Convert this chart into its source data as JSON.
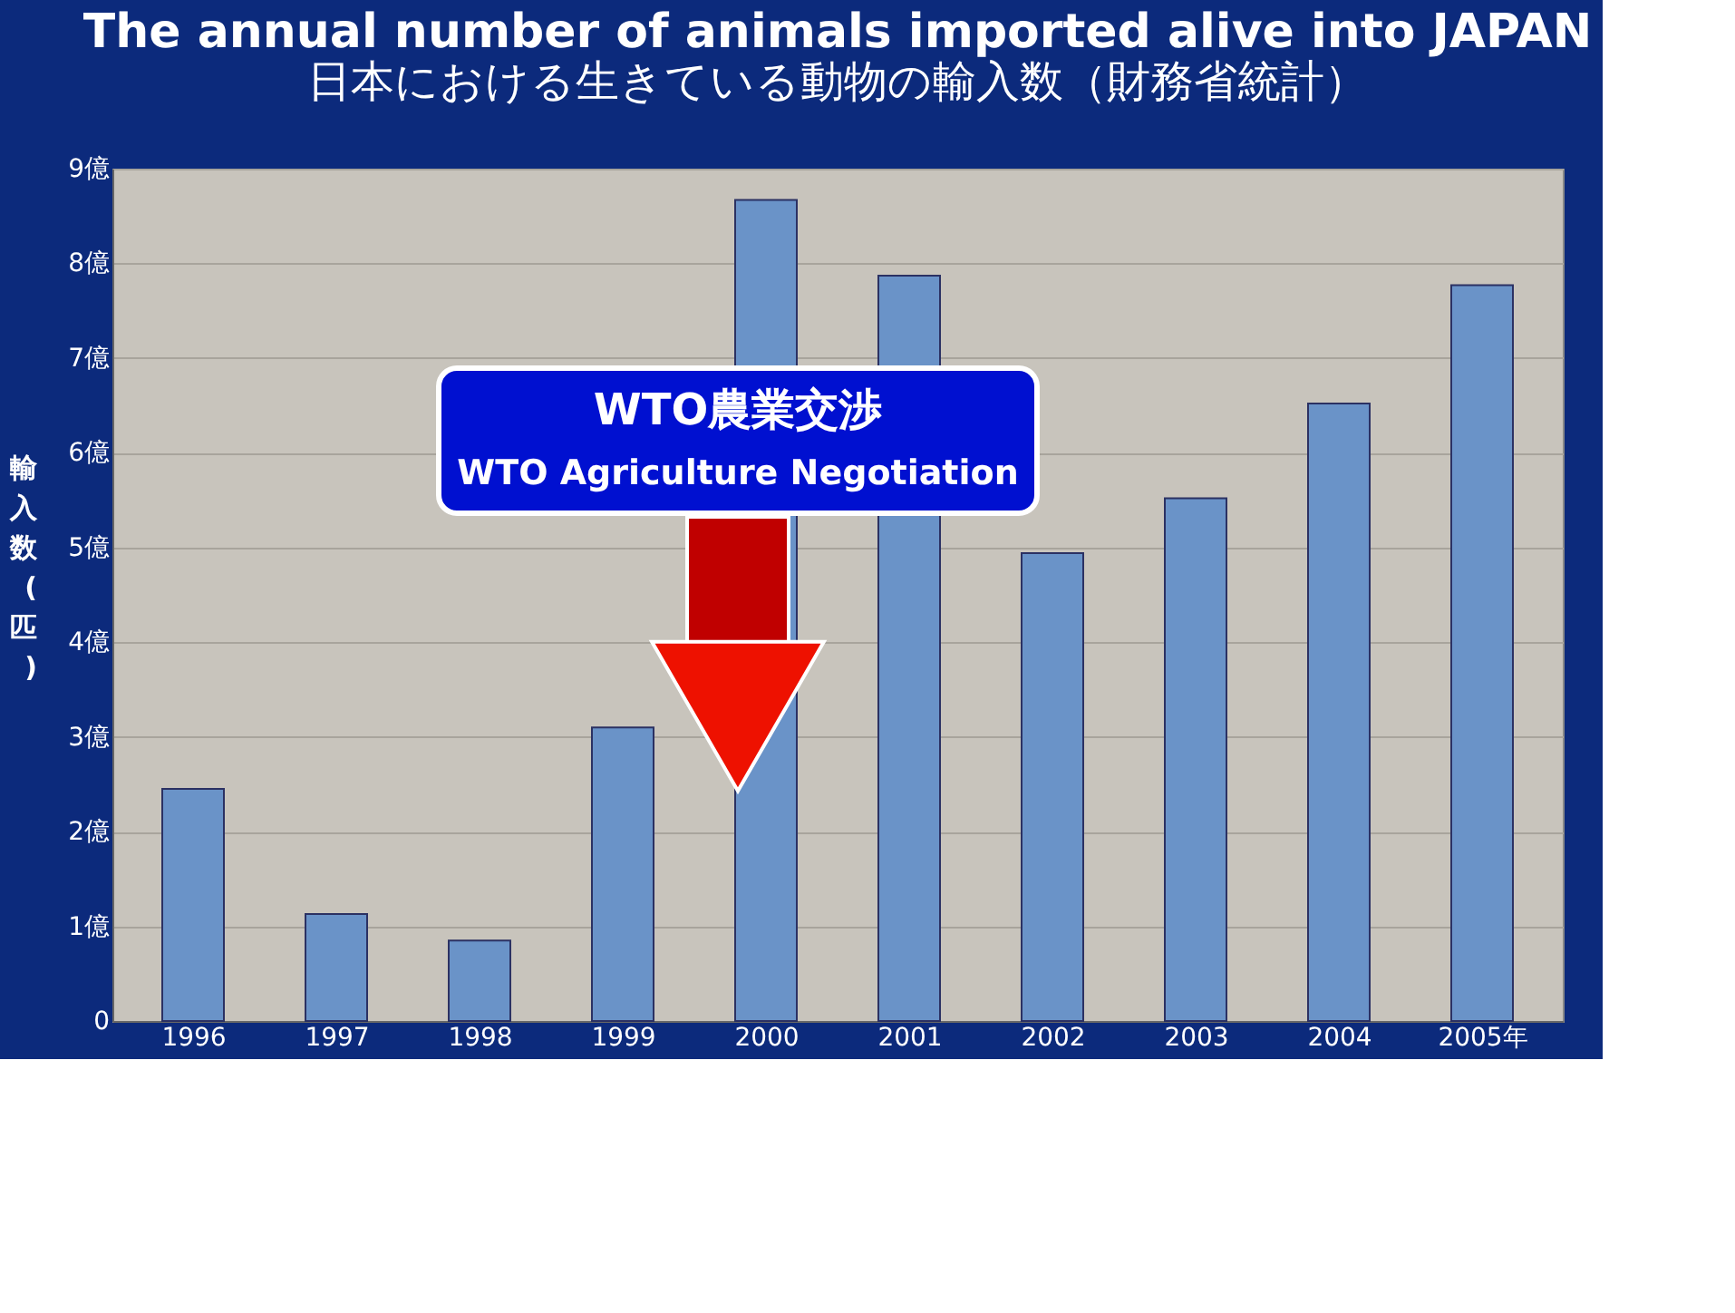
{
  "chart_data": {
    "type": "bar",
    "title": "The annual number of animals imported alive into JAPAN",
    "subtitle": "日本における生きている動物の輸入数（財務省統計）",
    "ylabel": "輸入数(匹)",
    "categories": [
      "1996",
      "1997",
      "1998",
      "1999",
      "2000",
      "2001",
      "2002",
      "2003",
      "2004",
      "2005年"
    ],
    "values": [
      2.45,
      1.13,
      0.85,
      3.1,
      8.67,
      7.87,
      4.94,
      5.52,
      6.52,
      7.77
    ],
    "color": "#6a93c8",
    "ylim": [
      0,
      9
    ],
    "yticks": [
      0,
      {
        "value": 1,
        "label": "1億"
      },
      {
        "value": 2,
        "label": "2億"
      },
      {
        "value": 3,
        "label": "3億"
      },
      {
        "value": 4,
        "label": "4億"
      },
      {
        "value": 5,
        "label": "5億"
      },
      {
        "value": 6,
        "label": "6億"
      },
      {
        "value": 7,
        "label": "7億"
      },
      {
        "value": 8,
        "label": "8億"
      },
      {
        "value": 9,
        "label": "9億"
      }
    ],
    "grid": "y",
    "annotations": [
      "WTO農業交渉",
      "WTO Agriculture Negotiation"
    ]
  }
}
